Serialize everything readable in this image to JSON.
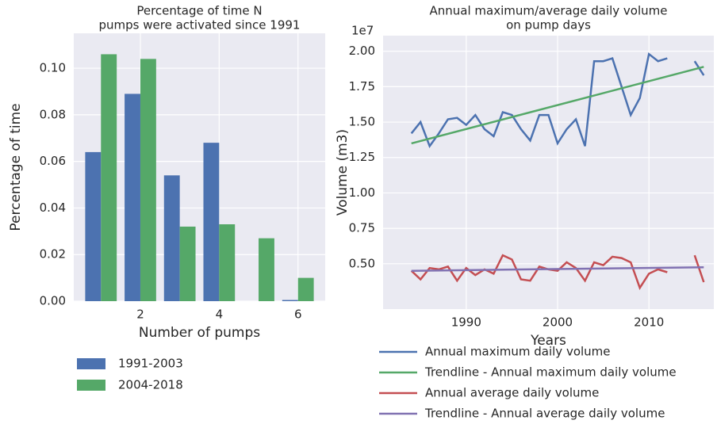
{
  "chart_data": [
    {
      "type": "bar",
      "title": [
        "Percentage of time N",
        "pumps were activated since 1991"
      ],
      "xlabel": "Number of pumps",
      "ylabel": "Percentage of time",
      "x": [
        1,
        2,
        3,
        4,
        5,
        6
      ],
      "series": [
        {
          "name": "1991-2003",
          "color": "#4c72b0",
          "values": [
            0.064,
            0.089,
            0.054,
            0.068,
            0,
            0.0005
          ]
        },
        {
          "name": "2004-2018",
          "color": "#55a868",
          "values": [
            0.106,
            0.104,
            0.032,
            0.033,
            0.027,
            0.01
          ]
        }
      ],
      "xlim": [
        0.31,
        6.69
      ],
      "xticks": [
        2,
        4,
        6
      ],
      "ylim": [
        0,
        0.115
      ],
      "yticks": [
        {
          "value": 0,
          "label": "0.00"
        },
        {
          "value": 0.02,
          "label": "0.02"
        },
        {
          "value": 0.04,
          "label": "0.04"
        },
        {
          "value": 0.06,
          "label": "0.06"
        },
        {
          "value": 0.08,
          "label": "0.08"
        },
        {
          "value": 0.1,
          "label": "0.10"
        }
      ],
      "grid": true,
      "legend": "below left"
    },
    {
      "type": "line",
      "title": [
        "Annual maximum/average daily volume",
        "on pump days"
      ],
      "xlabel": "Years",
      "ylabel": "Volume (m3)",
      "offset_text": "1e7",
      "x": [
        1984,
        1985,
        1986,
        1987,
        1988,
        1989,
        1990,
        1991,
        1992,
        1993,
        1994,
        1995,
        1996,
        1997,
        1998,
        1999,
        2000,
        2001,
        2002,
        2003,
        2004,
        2005,
        2006,
        2007,
        2008,
        2009,
        2010,
        2011,
        2012,
        2013,
        2014,
        2015,
        2016
      ],
      "series": [
        {
          "name": "Annual maximum daily volume",
          "color": "#4c72b0",
          "values": [
            1.42,
            1.5,
            1.33,
            1.42,
            1.52,
            1.53,
            1.48,
            1.55,
            1.45,
            1.4,
            1.57,
            1.55,
            1.45,
            1.37,
            1.55,
            1.55,
            1.35,
            1.45,
            1.52,
            1.33,
            1.93,
            1.93,
            1.95,
            1.75,
            1.55,
            1.67,
            1.98,
            1.93,
            1.95,
            null,
            null,
            1.93,
            1.83
          ]
        },
        {
          "name": "Trendline - Annual maximum daily volume",
          "color": "#55a868",
          "x": [
            1984,
            2016
          ],
          "values": [
            1.35,
            1.89
          ]
        },
        {
          "name": "Annual average daily volume",
          "color": "#c44e52",
          "values": [
            0.45,
            0.39,
            0.47,
            0.46,
            0.48,
            0.38,
            0.47,
            0.42,
            0.46,
            0.43,
            0.56,
            0.53,
            0.39,
            0.38,
            0.48,
            0.46,
            0.45,
            0.51,
            0.47,
            0.38,
            0.51,
            0.49,
            0.55,
            0.54,
            0.51,
            0.33,
            0.43,
            0.46,
            0.44,
            null,
            null,
            0.56,
            0.37
          ]
        },
        {
          "name": "Trendline - Annual average daily volume",
          "color": "#8172b2",
          "x": [
            1984,
            2016
          ],
          "values": [
            0.45,
            0.475
          ]
        }
      ],
      "xlim": [
        1980.9,
        2017.1
      ],
      "xticks": [
        1990,
        2000,
        2010
      ],
      "ylim": [
        0.18,
        2.11
      ],
      "yticks": [
        {
          "value": 0.5,
          "label": "0.50"
        },
        {
          "value": 0.75,
          "label": "0.75"
        },
        {
          "value": 1,
          "label": "1.00"
        },
        {
          "value": 1.25,
          "label": "1.25"
        },
        {
          "value": 1.5,
          "label": "1.50"
        },
        {
          "value": 1.75,
          "label": "1.75"
        },
        {
          "value": 2,
          "label": "2.00"
        }
      ],
      "grid": true,
      "legend": "below"
    }
  ]
}
